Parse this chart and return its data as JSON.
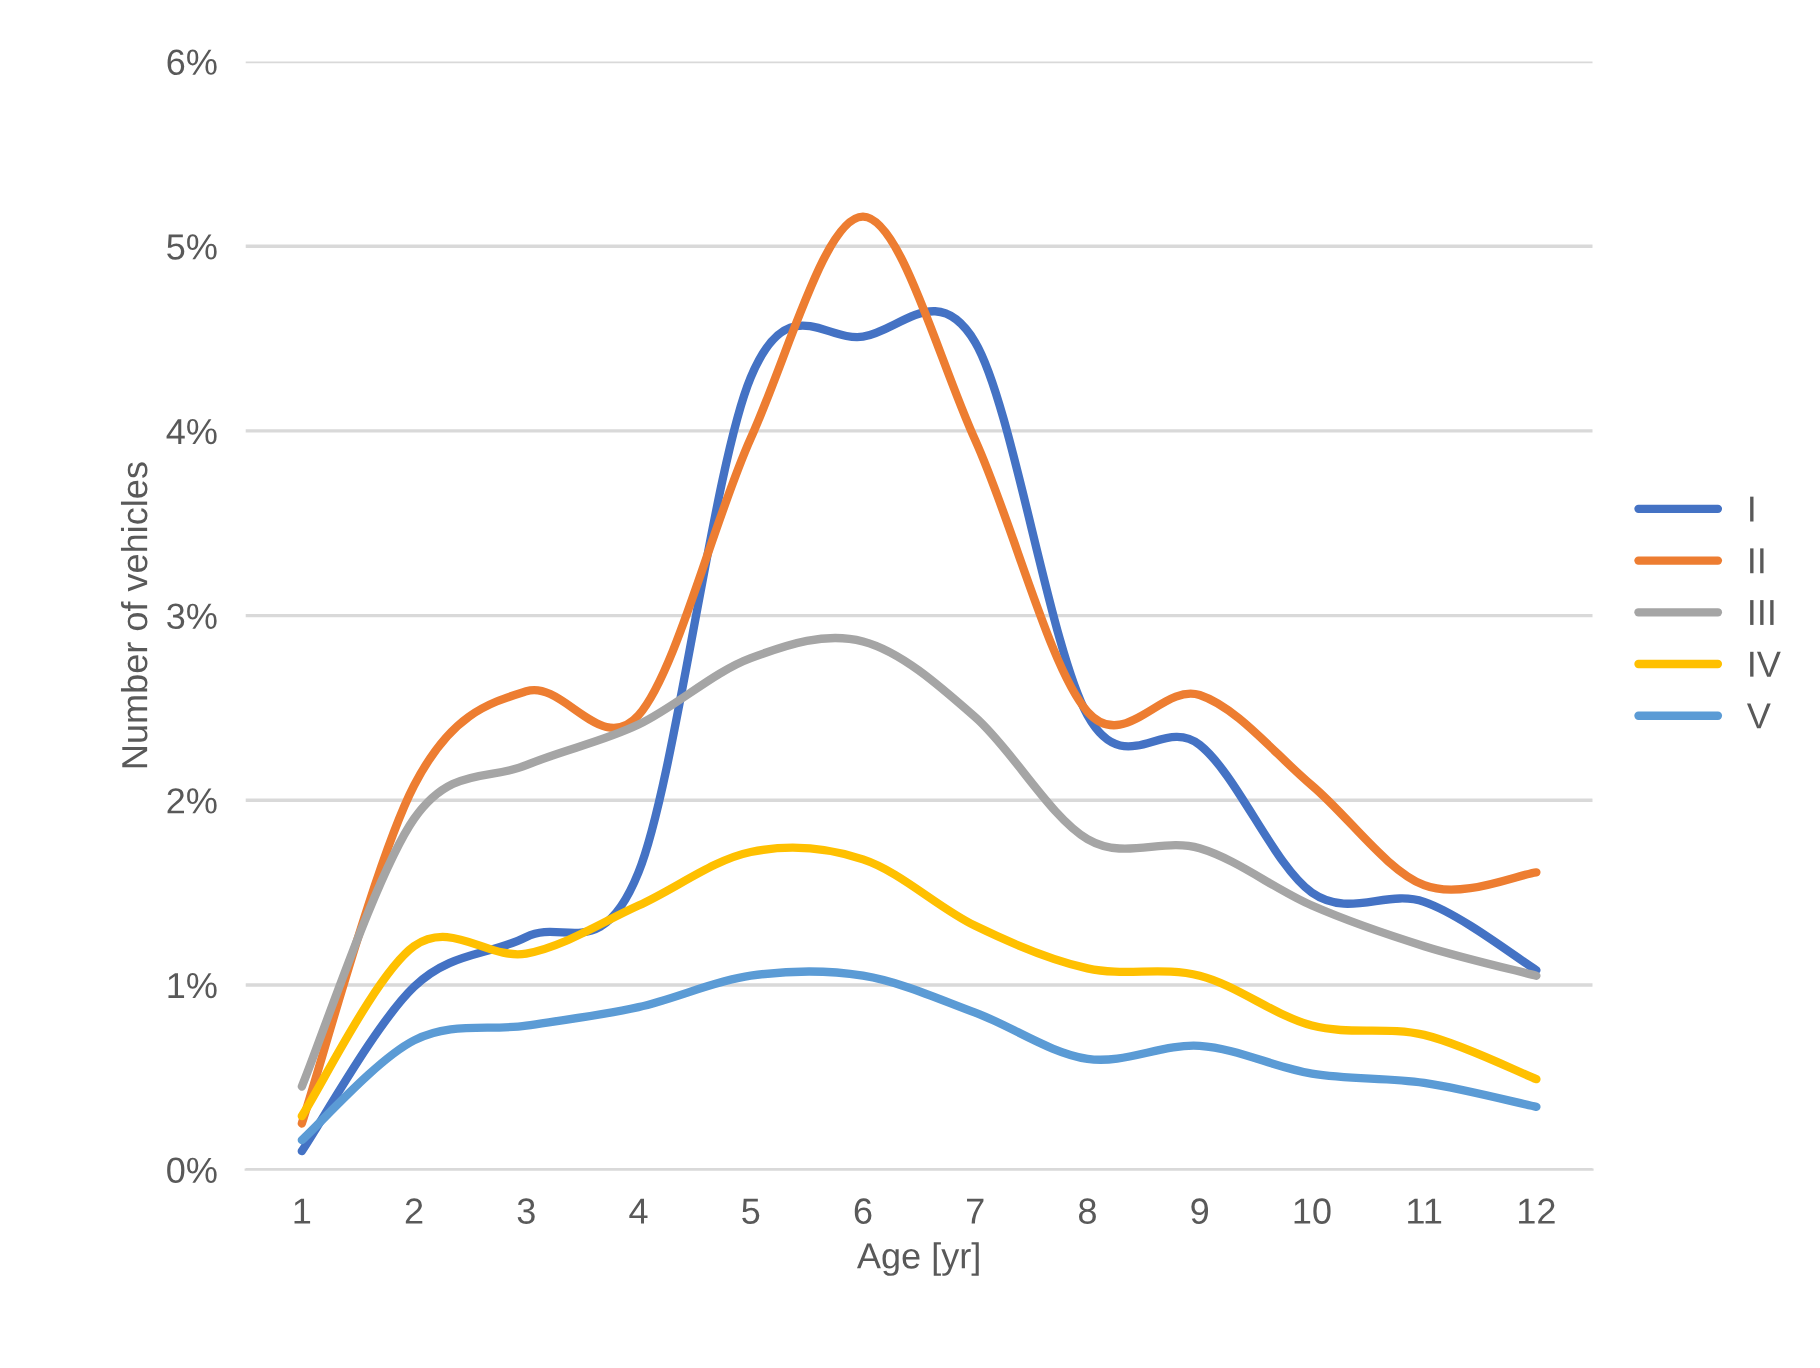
{
  "chart_data": {
    "type": "line",
    "xlabel": "Age [yr]",
    "ylabel": "Number of vehicles",
    "categories": [
      "1",
      "2",
      "3",
      "4",
      "5",
      "6",
      "7",
      "8",
      "9",
      "10",
      "11",
      "12"
    ],
    "series": [
      {
        "name": "I",
        "color": "#4472c4",
        "values": [
          0.1,
          0.99,
          1.26,
          1.61,
          4.29,
          4.51,
          4.48,
          2.46,
          2.3,
          1.5,
          1.45,
          1.08
        ]
      },
      {
        "name": "II",
        "color": "#ed7d31",
        "values": [
          0.25,
          2.08,
          2.59,
          2.46,
          3.96,
          5.16,
          3.95,
          2.48,
          2.57,
          2.08,
          1.54,
          1.61
        ]
      },
      {
        "name": "III",
        "color": "#a5a5a5",
        "values": [
          0.45,
          1.9,
          2.19,
          2.41,
          2.77,
          2.86,
          2.45,
          1.79,
          1.74,
          1.43,
          1.21,
          1.05
        ]
      },
      {
        "name": "IV",
        "color": "#ffc000",
        "values": [
          0.29,
          1.21,
          1.17,
          1.43,
          1.72,
          1.68,
          1.32,
          1.09,
          1.05,
          0.78,
          0.73,
          0.49
        ]
      },
      {
        "name": "V",
        "color": "#5b9bd5",
        "values": [
          0.16,
          0.7,
          0.78,
          0.88,
          1.05,
          1.05,
          0.85,
          0.6,
          0.67,
          0.52,
          0.47,
          0.34
        ]
      }
    ],
    "ylim": [
      0,
      6
    ],
    "yticks": [
      {
        "value": 0,
        "label": "0%"
      },
      {
        "value": 1,
        "label": "1%"
      },
      {
        "value": 2,
        "label": "2%"
      },
      {
        "value": 3,
        "label": "3%"
      },
      {
        "value": 4,
        "label": "4%"
      },
      {
        "value": 5,
        "label": "5%"
      },
      {
        "value": 6,
        "label": "6%"
      }
    ],
    "grid": "y",
    "legend": "right",
    "marker": "none",
    "line_style": "solid"
  }
}
